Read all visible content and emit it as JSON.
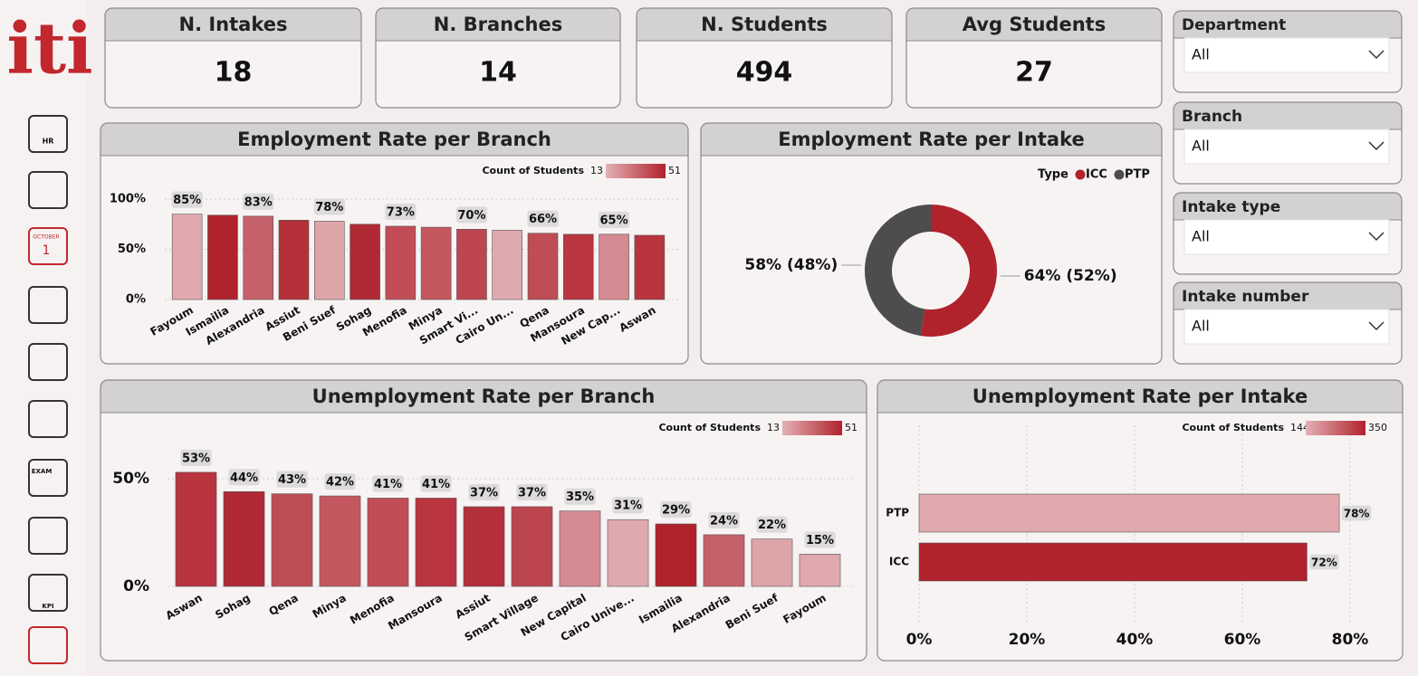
{
  "sidebar": {
    "logo": "iti",
    "icon_labels": [
      "HR",
      "OCTOBER",
      "1",
      "EXAM",
      "KPI"
    ]
  },
  "cards": [
    {
      "title": "N. Intakes",
      "value": 18
    },
    {
      "title": "N. Branches",
      "value": 14
    },
    {
      "title": "N. Students",
      "value": 494
    },
    {
      "title": "Avg Students",
      "value": 27
    }
  ],
  "filters": [
    {
      "label": "Department",
      "value": "All"
    },
    {
      "label": "Branch",
      "value": "All"
    },
    {
      "label": "Intake type",
      "value": "All"
    },
    {
      "label": "Intake number",
      "value": "All"
    }
  ],
  "chart_data": [
    {
      "type": "bar",
      "title": "Employment Rate per Branch",
      "categories": [
        "Fayoum",
        "Ismailia",
        "Alexandria",
        "Assiut",
        "Beni Suef",
        "Sohag",
        "Menofia",
        "Minya",
        "Smart Vi...",
        "Cairo Un...",
        "Qena",
        "Mansoura",
        "New Cap...",
        "Aswan"
      ],
      "values": [
        85,
        84,
        83,
        79,
        78,
        75,
        73,
        72,
        70,
        69,
        66,
        65,
        65,
        64
      ],
      "value_labels": [
        "85%",
        null,
        "83%",
        null,
        "78%",
        null,
        "73%",
        null,
        "70%",
        null,
        "66%",
        null,
        "65%",
        null
      ],
      "colors": [
        "#dfa9ad",
        "#b0222c",
        "#c4616a",
        "#b3303a",
        "#dea5a9",
        "#b02a35",
        "#c24d57",
        "#c4575f",
        "#bd4550",
        "#deaaae",
        "#bf4d56",
        "#b93540",
        "#d58a91",
        "#b8343e"
      ],
      "ylim": [
        0,
        100
      ],
      "yticks": [
        {
          "value": 0,
          "label": "0%"
        },
        {
          "value": 50,
          "label": "50%"
        },
        {
          "value": 100,
          "label": "100%"
        }
      ],
      "grid": true,
      "color_legend": {
        "title": "Count of Students",
        "min": 13,
        "max": 51,
        "colors": [
          "#e4b1b5",
          "#b0222c"
        ]
      }
    },
    {
      "type": "donut",
      "title": "Employment Rate per Intake",
      "legend_title": "Type",
      "categories": [
        "ICC",
        "PTP"
      ],
      "values": [
        64,
        58
      ],
      "value_labels": [
        "64% (52%)",
        "58% (48%)"
      ],
      "colors": [
        "#b0222c",
        "#4d4d4d"
      ]
    },
    {
      "type": "bar",
      "title": "Unemployment Rate per Branch",
      "categories": [
        "Aswan",
        "Sohag",
        "Qena",
        "Minya",
        "Menofia",
        "Mansoura",
        "Assiut",
        "Smart Village",
        "New Capital",
        "Cairo Unive...",
        "Ismailia",
        "Alexandria",
        "Beni Suef",
        "Fayoum"
      ],
      "values": [
        53,
        44,
        43,
        42,
        41,
        41,
        37,
        37,
        35,
        31,
        29,
        24,
        22,
        15
      ],
      "value_labels": [
        "53%",
        "44%",
        "43%",
        "42%",
        "41%",
        "41%",
        "37%",
        "37%",
        "35%",
        "31%",
        "29%",
        "24%",
        "22%",
        "15%"
      ],
      "colors": [
        "#b8343e",
        "#b02a35",
        "#bf4d56",
        "#c4575f",
        "#c24d57",
        "#b93540",
        "#b3303a",
        "#bd4550",
        "#d58a91",
        "#deaaae",
        "#b0222c",
        "#c4616a",
        "#dea5a9",
        "#dfa9ad"
      ],
      "ylim": [
        0,
        70
      ],
      "yticks": [
        {
          "value": 0,
          "label": "0%"
        },
        {
          "value": 50,
          "label": "50%"
        }
      ],
      "grid": true,
      "color_legend": {
        "title": "Count of Students",
        "min": 13,
        "max": 51,
        "colors": [
          "#e4b1b5",
          "#b0222c"
        ]
      }
    },
    {
      "type": "bar",
      "horizontal": true,
      "title": "Unemployment Rate per Intake",
      "categories": [
        "PTP",
        "ICC"
      ],
      "values": [
        78,
        72
      ],
      "value_labels": [
        "78%",
        "72%"
      ],
      "colors": [
        "#dfa9ad",
        "#b0222c"
      ],
      "xlim": [
        0,
        85
      ],
      "xticks": [
        {
          "value": 0,
          "label": "0%"
        },
        {
          "value": 20,
          "label": "20%"
        },
        {
          "value": 40,
          "label": "40%"
        },
        {
          "value": 60,
          "label": "60%"
        },
        {
          "value": 80,
          "label": "80%"
        }
      ],
      "grid": true,
      "color_legend": {
        "title": "Count of Students",
        "min": 144,
        "max": 350,
        "colors": [
          "#e4b1b5",
          "#b0222c"
        ]
      }
    }
  ]
}
